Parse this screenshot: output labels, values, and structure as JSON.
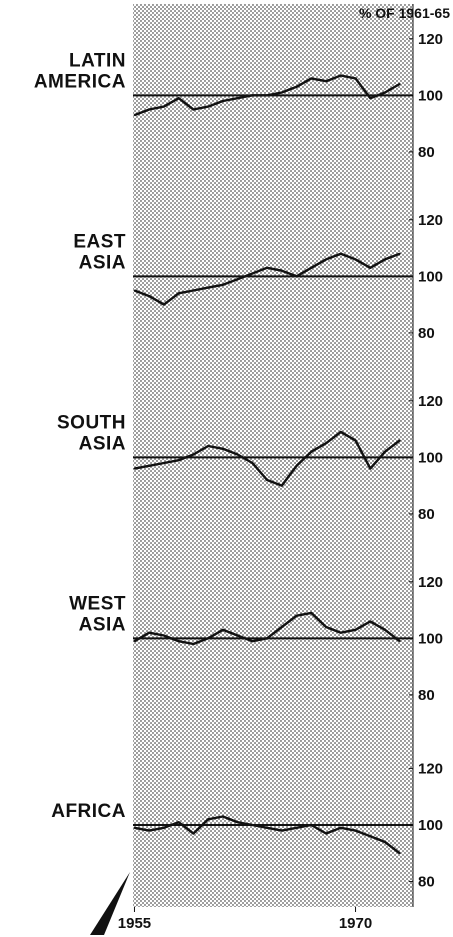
{
  "chart_data": {
    "type": "line",
    "unit_label": "% OF 1961-65",
    "x": [
      1955,
      1956,
      1957,
      1958,
      1959,
      1960,
      1961,
      1962,
      1963,
      1964,
      1965,
      1966,
      1967,
      1968,
      1969,
      1970,
      1971,
      1972,
      1973
    ],
    "x_tick_labels": [
      "1955",
      "1970"
    ],
    "xlim": [
      1954.9,
      1973.9
    ],
    "y_tick_labels": [
      "120",
      "100",
      "80"
    ],
    "colors": {
      "stipple": "#8a8a8a",
      "line": "#111111",
      "background": "#ffffff"
    },
    "panels": [
      {
        "name": "LATIN AMERICA",
        "label_lines": [
          "LATIN",
          "AMERICA"
        ],
        "ylim": [
          69,
          133
        ],
        "y_ticks": [
          120,
          100,
          80
        ],
        "values": [
          93,
          95,
          96,
          99,
          95,
          96,
          98,
          99,
          100,
          100,
          101,
          103,
          106,
          105,
          107,
          106,
          99,
          101,
          104
        ]
      },
      {
        "name": "EAST ASIA",
        "label_lines": [
          "EAST",
          "ASIA"
        ],
        "ylim": [
          69,
          133
        ],
        "y_ticks": [
          120,
          100,
          80
        ],
        "values": [
          95,
          93,
          90,
          94,
          95,
          96,
          97,
          99,
          101,
          103,
          102,
          100,
          103,
          106,
          108,
          106,
          103,
          106,
          108
        ]
      },
      {
        "name": "SOUTH ASIA",
        "label_lines": [
          "SOUTH",
          "ASIA"
        ],
        "ylim": [
          69,
          133
        ],
        "y_ticks": [
          120,
          100,
          80
        ],
        "values": [
          96,
          97,
          98,
          99,
          101,
          104,
          103,
          101,
          98,
          92,
          90,
          97,
          102,
          105,
          109,
          106,
          96,
          102,
          106
        ]
      },
      {
        "name": "WEST ASIA",
        "label_lines": [
          "WEST",
          "ASIA"
        ],
        "ylim": [
          69,
          133
        ],
        "y_ticks": [
          120,
          100,
          80
        ],
        "values": [
          99,
          102,
          101,
          99,
          98,
          100,
          103,
          101,
          99,
          100,
          104,
          108,
          109,
          104,
          102,
          103,
          106,
          103,
          99
        ]
      },
      {
        "name": "AFRICA",
        "label_lines": [
          "AFRICA"
        ],
        "ylim": [
          71,
          135
        ],
        "y_ticks": [
          120,
          100,
          80
        ],
        "values": [
          99,
          98,
          99,
          101,
          97,
          102,
          103,
          101,
          100,
          99,
          98,
          99,
          100,
          97,
          99,
          98,
          96,
          94,
          90
        ]
      }
    ]
  }
}
